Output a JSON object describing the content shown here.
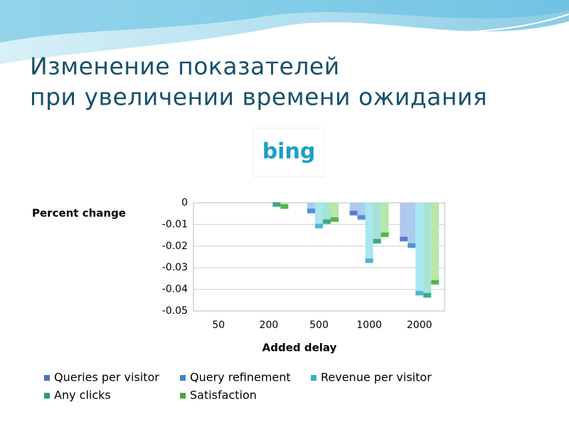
{
  "slide": {
    "title_lines": [
      "Изменение показателей",
      "при увеличении времени ожидания"
    ],
    "logo": "bing"
  },
  "chart_data": {
    "type": "bar",
    "categories": [
      "50",
      "200",
      "500",
      "1000",
      "2000"
    ],
    "series": [
      {
        "name": "Queries per visitor",
        "color": "#4a6fc0",
        "light": "#b3c6ee",
        "values": [
          0,
          0,
          0,
          -0.006,
          -0.018
        ]
      },
      {
        "name": "Query refinement",
        "color": "#3f86c8",
        "light": "#a9cdee",
        "values": [
          0,
          0,
          -0.005,
          -0.008,
          -0.021
        ]
      },
      {
        "name": "Revenue per visitor",
        "color": "#3aaec8",
        "light": "#a8e6f0",
        "values": [
          0,
          0,
          -0.012,
          -0.028,
          -0.043
        ]
      },
      {
        "name": "Any clicks",
        "color": "#2a9a80",
        "light": "#a5e3d3",
        "values": [
          0,
          -0.002,
          -0.01,
          -0.019,
          -0.044
        ]
      },
      {
        "name": "Satisfaction",
        "color": "#45a83a",
        "light": "#b6e8a8",
        "values": [
          0,
          -0.003,
          -0.009,
          -0.016,
          -0.038
        ]
      }
    ],
    "ylabel": "Percent change",
    "xlabel": "Added delay",
    "ylim": [
      -0.05,
      0
    ],
    "yticks": [
      0,
      -0.01,
      -0.02,
      -0.03,
      -0.04,
      -0.05
    ],
    "grid": true,
    "legend": "bottom"
  }
}
